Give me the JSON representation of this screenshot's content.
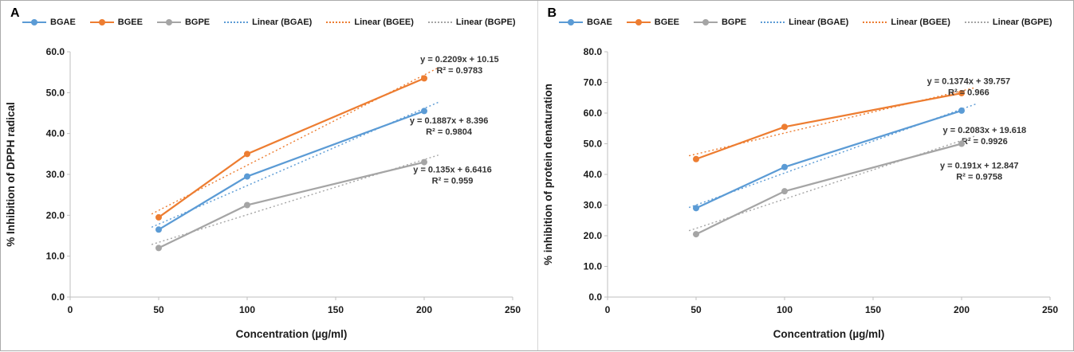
{
  "chart_data": [
    {
      "type": "line",
      "panel_label": "A",
      "title": "",
      "xlabel": "Concentration (µg/ml)",
      "ylabel": "% Inhibition of DPPH radical",
      "x": [
        50,
        100,
        200
      ],
      "xlim": [
        0,
        250
      ],
      "xticks": [
        0,
        50,
        100,
        150,
        200,
        250
      ],
      "ylim": [
        0,
        60
      ],
      "ytick_step": 10,
      "ytick_decimals": 1,
      "grid": false,
      "legend_position": "top",
      "legend": [
        {
          "label": "BGAE",
          "color": "#5B9BD5",
          "style": "line-marker"
        },
        {
          "label": "BGEE",
          "color": "#ED7D31",
          "style": "line-marker"
        },
        {
          "label": "BGPE",
          "color": "#A5A5A5",
          "style": "line-marker"
        },
        {
          "label": "Linear (BGAE)",
          "color": "#5B9BD5",
          "style": "dotted"
        },
        {
          "label": "Linear (BGEE)",
          "color": "#ED7D31",
          "style": "dotted"
        },
        {
          "label": "Linear (BGPE)",
          "color": "#A5A5A5",
          "style": "dotted"
        }
      ],
      "series": [
        {
          "name": "BGAE",
          "color": "#5B9BD5",
          "values": [
            16.5,
            29.5,
            45.5
          ],
          "trendline": {
            "label": "Linear (BGAE)",
            "slope": 0.1887,
            "intercept": 8.396,
            "r2": 0.9804,
            "equation_text": "y = 0.1887x + 8.396",
            "r2_text": "R² = 0.9804",
            "annotation": {
              "x": 214,
              "y": 42.5
            }
          }
        },
        {
          "name": "BGEE",
          "color": "#ED7D31",
          "values": [
            19.5,
            35,
            53.5
          ],
          "trendline": {
            "label": "Linear (BGEE)",
            "slope": 0.2209,
            "intercept": 10.15,
            "r2": 0.9783,
            "equation_text": "y = 0.2209x + 10.15",
            "r2_text": "R² = 0.9783",
            "annotation": {
              "x": 220,
              "y": 57.5
            }
          }
        },
        {
          "name": "BGPE",
          "color": "#A5A5A5",
          "values": [
            12,
            22.5,
            33
          ],
          "trendline": {
            "label": "Linear (BGPE)",
            "slope": 0.135,
            "intercept": 6.6416,
            "r2": 0.959,
            "equation_text": "y = 0.135x + 6.6416",
            "r2_text": "R² = 0.959",
            "annotation": {
              "x": 216,
              "y": 30.5
            }
          }
        }
      ]
    },
    {
      "type": "line",
      "panel_label": "B",
      "title": "",
      "xlabel": "Concentration (µg/ml)",
      "ylabel": "% inhibition of protein denaturation",
      "x": [
        50,
        100,
        200
      ],
      "xlim": [
        0,
        250
      ],
      "xticks": [
        0,
        50,
        100,
        150,
        200,
        250
      ],
      "ylim": [
        0,
        80
      ],
      "ytick_step": 10,
      "ytick_decimals": 1,
      "grid": false,
      "legend_position": "top",
      "legend": [
        {
          "label": "BGAE",
          "color": "#5B9BD5",
          "style": "line-marker"
        },
        {
          "label": "BGEE",
          "color": "#ED7D31",
          "style": "line-marker"
        },
        {
          "label": "BGPE",
          "color": "#A5A5A5",
          "style": "line-marker"
        },
        {
          "label": "Linear (BGAE)",
          "color": "#5B9BD5",
          "style": "dotted"
        },
        {
          "label": "Linear (BGEE)",
          "color": "#ED7D31",
          "style": "dotted"
        },
        {
          "label": "Linear (BGPE)",
          "color": "#A5A5A5",
          "style": "dotted"
        }
      ],
      "series": [
        {
          "name": "BGAE",
          "color": "#5B9BD5",
          "values": [
            29,
            42.4,
            60.8
          ],
          "trendline": {
            "label": "Linear (BGAE)",
            "slope": 0.2083,
            "intercept": 19.618,
            "r2": 0.9926,
            "equation_text": "y = 0.2083x + 19.618",
            "r2_text": "R² = 0.9926",
            "annotation": {
              "x": 213,
              "y": 53.5
            }
          }
        },
        {
          "name": "BGEE",
          "color": "#ED7D31",
          "values": [
            45,
            55.5,
            66.5
          ],
          "trendline": {
            "label": "Linear (BGEE)",
            "slope": 0.1374,
            "intercept": 39.757,
            "r2": 0.966,
            "equation_text": "y = 0.1374x + 39.757",
            "r2_text": "R² = 0.966",
            "annotation": {
              "x": 204,
              "y": 69.5
            }
          }
        },
        {
          "name": "BGPE",
          "color": "#A5A5A5",
          "values": [
            20.5,
            34.5,
            50
          ],
          "trendline": {
            "label": "Linear (BGPE)",
            "slope": 0.191,
            "intercept": 12.847,
            "r2": 0.9758,
            "equation_text": "y = 0.191x + 12.847",
            "r2_text": "R² = 0.9758",
            "annotation": {
              "x": 210,
              "y": 42
            }
          }
        }
      ]
    }
  ]
}
